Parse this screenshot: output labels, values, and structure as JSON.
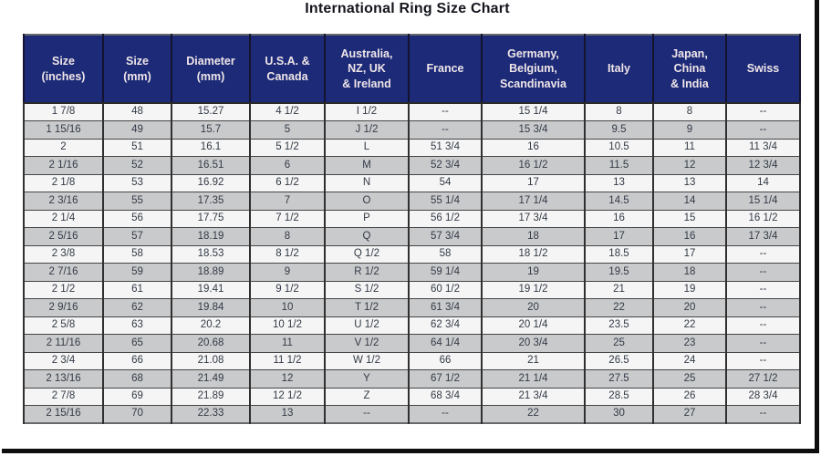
{
  "page": {
    "title": "International Ring Size Chart"
  },
  "colors": {
    "header_bg": "#1c2a78",
    "header_text": "#f0e6e8",
    "row_white_bg": "#f5f5f5",
    "row_gray_bg": "#c9cacc",
    "body_text": "#333a46",
    "grid_line": "#454545",
    "outer_border": "#67696d",
    "frame_bar": "#0e0e0e",
    "title_text": "#15161d"
  },
  "chart_data": {
    "type": "table",
    "title": "International Ring Size Chart",
    "columns": [
      "Size\n(inches)",
      "Size\n(mm)",
      "Diameter\n(mm)",
      "U.S.A. &\nCanada",
      "Australia,\nNZ, UK\n& Ireland",
      "France",
      "Germany,\nBelgium,\nScandinavia",
      "Italy",
      "Japan,\nChina\n& India",
      "Swiss"
    ],
    "rows": [
      [
        "1 7/8",
        "48",
        "15.27",
        "4 1/2",
        "I 1/2",
        "--",
        "15 1/4",
        "8",
        "8",
        "--"
      ],
      [
        "1 15/16",
        "49",
        "15.7",
        "5",
        "J 1/2",
        "--",
        "15 3/4",
        "9.5",
        "9",
        "--"
      ],
      [
        "2",
        "51",
        "16.1",
        "5 1/2",
        "L",
        "51 3/4",
        "16",
        "10.5",
        "11",
        "11 3/4"
      ],
      [
        "2 1/16",
        "52",
        "16.51",
        "6",
        "M",
        "52 3/4",
        "16 1/2",
        "11.5",
        "12",
        "12 3/4"
      ],
      [
        "2 1/8",
        "53",
        "16.92",
        "6 1/2",
        "N",
        "54",
        "17",
        "13",
        "13",
        "14"
      ],
      [
        "2 3/16",
        "55",
        "17.35",
        "7",
        "O",
        "55 1/4",
        "17 1/4",
        "14.5",
        "14",
        "15 1/4"
      ],
      [
        "2 1/4",
        "56",
        "17.75",
        "7 1/2",
        "P",
        "56 1/2",
        "17 3/4",
        "16",
        "15",
        "16 1/2"
      ],
      [
        "2 5/16",
        "57",
        "18.19",
        "8",
        "Q",
        "57 3/4",
        "18",
        "17",
        "16",
        "17 3/4"
      ],
      [
        "2 3/8",
        "58",
        "18.53",
        "8 1/2",
        "Q 1/2",
        "58",
        "18 1/2",
        "18.5",
        "17",
        "--"
      ],
      [
        "2 7/16",
        "59",
        "18.89",
        "9",
        "R 1/2",
        "59 1/4",
        "19",
        "19.5",
        "18",
        "--"
      ],
      [
        "2 1/2",
        "61",
        "19.41",
        "9 1/2",
        "S 1/2",
        "60 1/2",
        "19 1/2",
        "21",
        "19",
        "--"
      ],
      [
        "2 9/16",
        "62",
        "19.84",
        "10",
        "T 1/2",
        "61 3/4",
        "20",
        "22",
        "20",
        "--"
      ],
      [
        "2 5/8",
        "63",
        "20.2",
        "10 1/2",
        "U 1/2",
        "62 3/4",
        "20 1/4",
        "23.5",
        "22",
        "--"
      ],
      [
        "2 11/16",
        "65",
        "20.68",
        "11",
        "V 1/2",
        "64 1/4",
        "20 3/4",
        "25",
        "23",
        "--"
      ],
      [
        "2 3/4",
        "66",
        "21.08",
        "11 1/2",
        "W 1/2",
        "66",
        "21",
        "26.5",
        "24",
        "--"
      ],
      [
        "2 13/16",
        "68",
        "21.49",
        "12",
        "Y",
        "67 1/2",
        "21 1/4",
        "27.5",
        "25",
        "27 1/2"
      ],
      [
        "2 7/8",
        "69",
        "21.89",
        "12 1/2",
        "Z",
        "68 3/4",
        "21 3/4",
        "28.5",
        "26",
        "28 3/4"
      ],
      [
        "2 15/16",
        "70",
        "22.33",
        "13",
        "--",
        "--",
        "22",
        "30",
        "27",
        "--"
      ]
    ]
  }
}
